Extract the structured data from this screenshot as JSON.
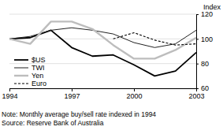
{
  "chart_data": {
    "type": "line",
    "y_label": "Index",
    "footnotes": [
      "Note: Monthly average buy/sell rate indexed in 1994",
      "Source: Reserve Bank of Australia"
    ],
    "x": [
      1994,
      1995,
      1996,
      1997,
      1998,
      1999,
      2000,
      2001,
      2002,
      2003
    ],
    "xlim": [
      1994,
      2003
    ],
    "xticks": [
      1994,
      1997,
      2000,
      2003
    ],
    "ylim": [
      60,
      120
    ],
    "yticks": [
      60,
      80,
      100,
      120
    ],
    "grid": true,
    "legend": "bottom-left",
    "series": [
      {
        "name": "$US",
        "color": "#000000",
        "line_style": "solid",
        "values": [
          100,
          101,
          107,
          93,
          86,
          87,
          79,
          70,
          74,
          89
        ]
      },
      {
        "name": "TWI",
        "color": "#222222",
        "line_style": "solid",
        "values": [
          100,
          102,
          107,
          109,
          107,
          104,
          97,
          93,
          96,
          107
        ]
      },
      {
        "name": "Yen",
        "color": "#bdbdbd",
        "line_style": "solid",
        "values": [
          100,
          96,
          114,
          114,
          108,
          95,
          84,
          84,
          91,
          101
        ]
      },
      {
        "name": "Euro",
        "color": "#000000",
        "line_style": "dashed",
        "values": [
          null,
          null,
          null,
          null,
          null,
          100,
          105,
          99,
          95,
          96
        ]
      }
    ]
  }
}
